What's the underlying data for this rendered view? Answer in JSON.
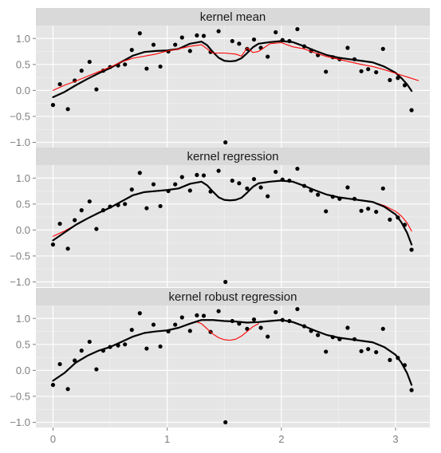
{
  "chart_data": [
    {
      "type": "scatter",
      "title": "kernel mean",
      "xlim": [
        -0.15,
        3.3
      ],
      "ylim": [
        -1.1,
        1.25
      ],
      "yticks": [
        1.0,
        0.5,
        0.0,
        -0.5,
        -1.0
      ],
      "ytick_labels": [
        "1.0",
        "0.5",
        "0.0",
        "−0.5",
        "−1.0"
      ],
      "xticks": [
        0,
        1,
        2,
        3
      ],
      "grid": true,
      "points": {
        "x": [
          0.0,
          0.06,
          0.13,
          0.19,
          0.25,
          0.32,
          0.38,
          0.44,
          0.5,
          0.57,
          0.63,
          0.69,
          0.76,
          0.82,
          0.88,
          0.94,
          1.01,
          1.07,
          1.13,
          1.2,
          1.26,
          1.32,
          1.38,
          1.45,
          1.51,
          1.57,
          1.63,
          1.7,
          1.76,
          1.82,
          1.88,
          1.95,
          2.01,
          2.07,
          2.14,
          2.2,
          2.26,
          2.32,
          2.39,
          2.45,
          2.51,
          2.58,
          2.64,
          2.7,
          2.76,
          2.83,
          2.89,
          2.95,
          3.02,
          3.08,
          3.14
        ],
        "y": [
          -0.28,
          0.12,
          -0.36,
          0.19,
          0.38,
          0.55,
          0.02,
          0.38,
          0.45,
          0.48,
          0.5,
          0.78,
          1.1,
          0.42,
          0.88,
          0.46,
          0.75,
          0.88,
          1.02,
          0.76,
          1.06,
          1.05,
          0.74,
          1.14,
          -1.0,
          0.95,
          0.9,
          0.8,
          0.98,
          0.82,
          0.65,
          1.12,
          0.97,
          0.95,
          1.18,
          0.85,
          0.76,
          0.68,
          0.36,
          0.64,
          0.6,
          0.82,
          0.6,
          0.37,
          0.41,
          0.35,
          0.8,
          0.2,
          0.24,
          0.1,
          -0.38
        ]
      },
      "series": [
        {
          "color": "#000000",
          "x": [
            0.0,
            0.1,
            0.2,
            0.3,
            0.4,
            0.5,
            0.6,
            0.7,
            0.8,
            0.9,
            1.0,
            1.1,
            1.2,
            1.3,
            1.35,
            1.4,
            1.45,
            1.5,
            1.55,
            1.6,
            1.65,
            1.7,
            1.75,
            1.8,
            1.9,
            2.0,
            2.1,
            2.2,
            2.3,
            2.4,
            2.5,
            2.6,
            2.7,
            2.8,
            2.9,
            3.0,
            3.05,
            3.1,
            3.14
          ],
          "y": [
            -0.13,
            -0.03,
            0.1,
            0.22,
            0.33,
            0.43,
            0.55,
            0.67,
            0.74,
            0.76,
            0.77,
            0.8,
            0.9,
            0.94,
            0.87,
            0.74,
            0.63,
            0.57,
            0.56,
            0.57,
            0.62,
            0.72,
            0.83,
            0.9,
            0.93,
            0.95,
            0.93,
            0.85,
            0.76,
            0.68,
            0.63,
            0.6,
            0.57,
            0.54,
            0.46,
            0.34,
            0.24,
            0.12,
            -0.01
          ]
        },
        {
          "color": "#ff0000",
          "x": [
            0.0,
            0.1,
            0.2,
            0.3,
            0.4,
            0.5,
            0.6,
            0.7,
            0.8,
            0.9,
            1.0,
            1.1,
            1.2,
            1.3,
            1.4,
            1.5,
            1.6,
            1.65,
            1.7,
            1.75,
            1.8,
            1.9,
            2.0,
            2.1,
            2.2,
            2.3,
            2.4,
            2.5,
            2.6,
            2.7,
            2.8,
            2.9,
            3.0,
            3.1,
            3.2
          ],
          "y": [
            0.0,
            0.1,
            0.18,
            0.27,
            0.36,
            0.45,
            0.55,
            0.62,
            0.66,
            0.7,
            0.76,
            0.8,
            0.85,
            0.88,
            0.72,
            0.72,
            0.7,
            0.66,
            0.82,
            0.73,
            0.75,
            0.9,
            0.92,
            0.84,
            0.8,
            0.72,
            0.65,
            0.6,
            0.55,
            0.5,
            0.46,
            0.4,
            0.33,
            0.26,
            0.19
          ]
        }
      ]
    },
    {
      "type": "scatter",
      "title": "kernel regression",
      "xlim": [
        -0.15,
        3.3
      ],
      "ylim": [
        -1.1,
        1.25
      ],
      "yticks": [
        1.0,
        0.5,
        0.0,
        -0.5,
        -1.0
      ],
      "ytick_labels": [
        "1.0",
        "0.5",
        "0.0",
        "−0.5",
        "−1.0"
      ],
      "xticks": [
        0,
        1,
        2,
        3
      ],
      "grid": true,
      "points": {
        "x": [
          0.0,
          0.06,
          0.13,
          0.19,
          0.25,
          0.32,
          0.38,
          0.44,
          0.5,
          0.57,
          0.63,
          0.69,
          0.76,
          0.82,
          0.88,
          0.94,
          1.01,
          1.07,
          1.13,
          1.2,
          1.26,
          1.32,
          1.38,
          1.45,
          1.51,
          1.57,
          1.63,
          1.7,
          1.76,
          1.82,
          1.88,
          1.95,
          2.01,
          2.07,
          2.14,
          2.2,
          2.26,
          2.32,
          2.39,
          2.45,
          2.51,
          2.58,
          2.64,
          2.7,
          2.76,
          2.83,
          2.89,
          2.95,
          3.02,
          3.08,
          3.14
        ],
        "y": [
          -0.28,
          0.12,
          -0.36,
          0.19,
          0.38,
          0.55,
          0.02,
          0.38,
          0.45,
          0.48,
          0.5,
          0.78,
          1.1,
          0.42,
          0.88,
          0.46,
          0.75,
          0.88,
          1.02,
          0.76,
          1.06,
          1.05,
          0.74,
          1.14,
          -1.0,
          0.95,
          0.9,
          0.8,
          0.98,
          0.82,
          0.65,
          1.12,
          0.97,
          0.95,
          1.18,
          0.85,
          0.76,
          0.68,
          0.36,
          0.64,
          0.6,
          0.82,
          0.6,
          0.37,
          0.41,
          0.35,
          0.8,
          0.2,
          0.24,
          0.1,
          -0.38
        ]
      },
      "series": [
        {
          "color": "#ff0000",
          "x": [
            0.0,
            0.1,
            0.2,
            0.3,
            0.4,
            0.5,
            0.6,
            0.7,
            0.8,
            0.9,
            1.0,
            1.1,
            1.2,
            1.3,
            1.35,
            1.4,
            1.45,
            1.5,
            1.55,
            1.6,
            1.65,
            1.7,
            1.75,
            1.8,
            1.9,
            2.0,
            2.1,
            2.2,
            2.3,
            2.4,
            2.5,
            2.6,
            2.7,
            2.8,
            2.9,
            3.0,
            3.05,
            3.1,
            3.14
          ],
          "y": [
            -0.12,
            -0.02,
            0.1,
            0.22,
            0.33,
            0.43,
            0.55,
            0.67,
            0.73,
            0.75,
            0.77,
            0.8,
            0.89,
            0.93,
            0.86,
            0.74,
            0.63,
            0.58,
            0.57,
            0.58,
            0.62,
            0.72,
            0.83,
            0.9,
            0.93,
            0.95,
            0.93,
            0.85,
            0.76,
            0.68,
            0.63,
            0.6,
            0.57,
            0.54,
            0.47,
            0.36,
            0.27,
            0.14,
            -0.02
          ]
        },
        {
          "color": "#000000",
          "x": [
            0.0,
            0.1,
            0.2,
            0.3,
            0.4,
            0.5,
            0.6,
            0.7,
            0.8,
            0.9,
            1.0,
            1.1,
            1.2,
            1.3,
            1.35,
            1.4,
            1.45,
            1.5,
            1.55,
            1.6,
            1.65,
            1.7,
            1.75,
            1.8,
            1.9,
            2.0,
            2.1,
            2.2,
            2.3,
            2.4,
            2.5,
            2.6,
            2.7,
            2.8,
            2.9,
            3.0,
            3.05,
            3.1,
            3.14
          ],
          "y": [
            -0.2,
            -0.05,
            0.1,
            0.22,
            0.33,
            0.43,
            0.55,
            0.67,
            0.73,
            0.75,
            0.77,
            0.8,
            0.89,
            0.93,
            0.86,
            0.74,
            0.63,
            0.58,
            0.57,
            0.58,
            0.62,
            0.72,
            0.83,
            0.9,
            0.93,
            0.95,
            0.93,
            0.85,
            0.76,
            0.68,
            0.63,
            0.6,
            0.57,
            0.54,
            0.45,
            0.3,
            0.15,
            -0.05,
            -0.28
          ]
        }
      ]
    },
    {
      "type": "scatter",
      "title": "kernel robust regression",
      "xlim": [
        -0.15,
        3.3
      ],
      "ylim": [
        -1.1,
        1.25
      ],
      "yticks": [
        1.0,
        0.5,
        0.0,
        -0.5,
        -1.0
      ],
      "ytick_labels": [
        "1.0",
        "0.5",
        "0.0",
        "−0.5",
        "−1.0"
      ],
      "xticks": [
        0,
        1,
        2,
        3
      ],
      "xtick_labels": [
        "0",
        "1",
        "2",
        "3"
      ],
      "grid": true,
      "points": {
        "x": [
          0.0,
          0.06,
          0.13,
          0.19,
          0.25,
          0.32,
          0.38,
          0.44,
          0.5,
          0.57,
          0.63,
          0.69,
          0.76,
          0.82,
          0.88,
          0.94,
          1.01,
          1.07,
          1.13,
          1.2,
          1.26,
          1.32,
          1.38,
          1.45,
          1.51,
          1.57,
          1.63,
          1.7,
          1.76,
          1.82,
          1.88,
          1.95,
          2.01,
          2.07,
          2.14,
          2.2,
          2.26,
          2.32,
          2.39,
          2.45,
          2.51,
          2.58,
          2.64,
          2.7,
          2.76,
          2.83,
          2.89,
          2.95,
          3.02,
          3.08,
          3.14
        ],
        "y": [
          -0.28,
          0.12,
          -0.36,
          0.19,
          0.38,
          0.55,
          0.02,
          0.38,
          0.45,
          0.48,
          0.5,
          0.78,
          1.1,
          0.42,
          0.88,
          0.46,
          0.75,
          0.88,
          1.02,
          0.76,
          1.06,
          1.05,
          0.74,
          1.14,
          -1.0,
          0.95,
          0.9,
          0.8,
          0.98,
          0.82,
          0.65,
          1.12,
          0.97,
          0.95,
          1.18,
          0.85,
          0.76,
          0.68,
          0.36,
          0.64,
          0.6,
          0.82,
          0.6,
          0.37,
          0.41,
          0.35,
          0.8,
          0.2,
          0.24,
          0.1,
          -0.38
        ]
      },
      "series": [
        {
          "color": "#ff0000",
          "x": [
            1.25,
            1.3,
            1.35,
            1.4,
            1.45,
            1.5,
            1.55,
            1.6,
            1.65,
            1.7,
            1.75,
            1.8
          ],
          "y": [
            0.94,
            0.9,
            0.8,
            0.7,
            0.63,
            0.59,
            0.58,
            0.6,
            0.66,
            0.75,
            0.84,
            0.9
          ]
        },
        {
          "color": "#000000",
          "x": [
            0.0,
            0.1,
            0.2,
            0.3,
            0.4,
            0.5,
            0.6,
            0.7,
            0.8,
            0.9,
            1.0,
            1.1,
            1.2,
            1.3,
            1.4,
            1.5,
            1.6,
            1.7,
            1.8,
            1.9,
            2.0,
            2.1,
            2.2,
            2.3,
            2.4,
            2.5,
            2.6,
            2.7,
            2.8,
            2.9,
            3.0,
            3.05,
            3.1,
            3.14
          ],
          "y": [
            -0.2,
            -0.05,
            0.15,
            0.28,
            0.38,
            0.45,
            0.55,
            0.65,
            0.72,
            0.75,
            0.77,
            0.82,
            0.9,
            0.97,
            0.97,
            0.95,
            0.94,
            0.92,
            0.93,
            0.95,
            0.97,
            0.93,
            0.85,
            0.76,
            0.68,
            0.63,
            0.6,
            0.57,
            0.54,
            0.45,
            0.3,
            0.15,
            -0.05,
            -0.28
          ]
        }
      ]
    }
  ],
  "theme": {
    "panel_bg": "#e5e5e5",
    "strip_bg": "#d9d9d9",
    "grid_major": "#ffffff",
    "grid_minor": "#f2f2f2",
    "tick_text": "#7f7f7f",
    "point_color": "#000000"
  }
}
